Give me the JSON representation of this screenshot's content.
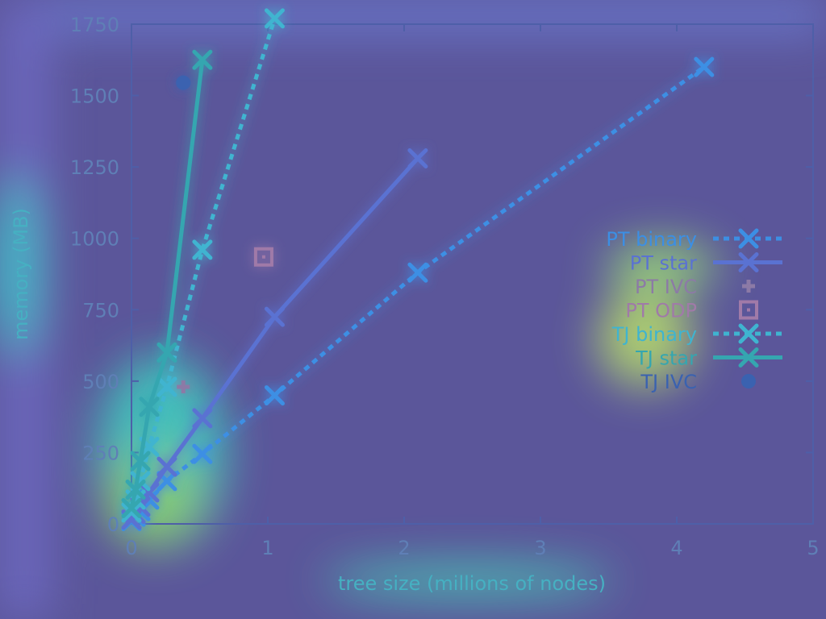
{
  "chart_data": {
    "type": "line",
    "xlabel": "tree size (millions of nodes)",
    "ylabel": "memory (MB)",
    "xlim": [
      0,
      5
    ],
    "ylim": [
      0,
      1750
    ],
    "xticks": [
      "0",
      "1",
      "2",
      "3",
      "4",
      "5"
    ],
    "yticks": [
      "0",
      "250",
      "500",
      "750",
      "1000",
      "1250",
      "1500",
      "1750"
    ],
    "grid": false,
    "legend_position": "right",
    "series": [
      {
        "name": "PT binary",
        "style": "dotted-x",
        "color": "#3c8fe4",
        "x": [
          0.0,
          0.03,
          0.065,
          0.13,
          0.26,
          0.52,
          1.05,
          2.1,
          4.2
        ],
        "y": [
          10,
          25,
          45,
          85,
          150,
          245,
          450,
          880,
          1600
        ]
      },
      {
        "name": "PT star",
        "style": "solid-x",
        "color": "#5a72d2",
        "x": [
          0.0,
          0.03,
          0.065,
          0.13,
          0.26,
          0.52,
          1.05,
          2.1
        ],
        "y": [
          15,
          35,
          60,
          110,
          200,
          370,
          725,
          1280
        ]
      },
      {
        "name": "PT IVC",
        "style": "plus",
        "color": "#8c7aa6",
        "x": [
          0.38
        ],
        "y": [
          480
        ]
      },
      {
        "name": "PT ODP",
        "style": "square",
        "color": "#a07aa8",
        "x": [
          0.97
        ],
        "y": [
          935
        ]
      },
      {
        "name": "TJ binary",
        "style": "dotted-x",
        "color": "#3fb4d0",
        "x": [
          0.0,
          0.03,
          0.065,
          0.13,
          0.26,
          0.52,
          1.05
        ],
        "y": [
          40,
          85,
          150,
          270,
          480,
          960,
          1770
        ]
      },
      {
        "name": "TJ star",
        "style": "solid-x",
        "color": "#35a6b0",
        "x": [
          0.0,
          0.03,
          0.065,
          0.13,
          0.26,
          0.52
        ],
        "y": [
          55,
          120,
          220,
          410,
          600,
          1625
        ]
      },
      {
        "name": "TJ IVC",
        "style": "dot",
        "color": "#3a62b0",
        "x": [
          0.38
        ],
        "y": [
          1545
        ]
      }
    ]
  },
  "colors": {
    "background": "#5b569a",
    "axis": "#4e5fa8",
    "glow": "#39c6e6"
  }
}
